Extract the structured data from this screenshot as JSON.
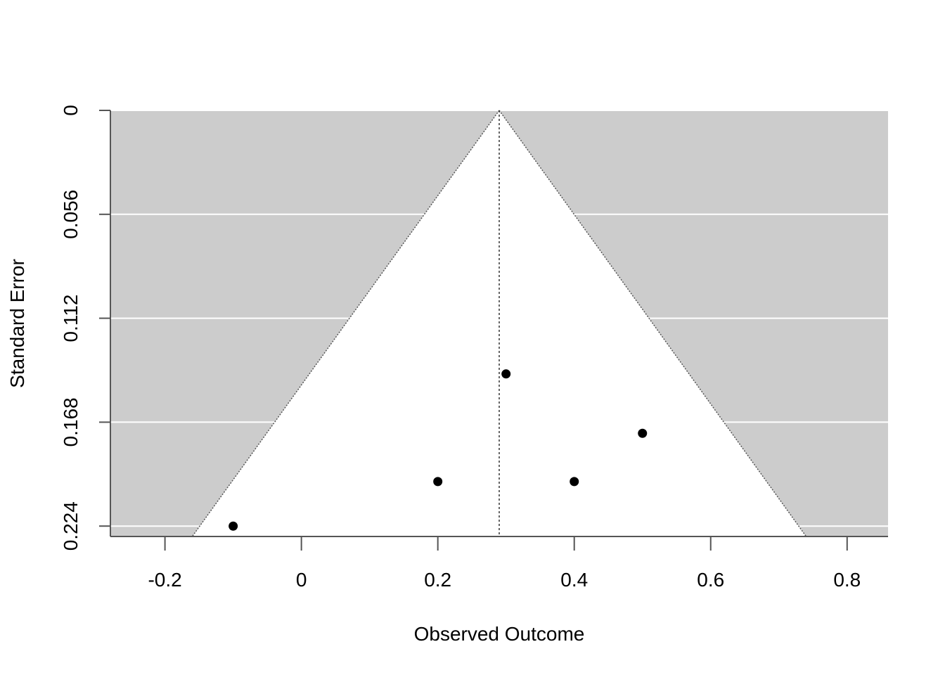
{
  "chart_data": {
    "type": "scatter",
    "title": "",
    "xlabel": "Observed Outcome",
    "ylabel": "Standard Error",
    "xlim": [
      -0.28,
      0.86
    ],
    "ylim": [
      0,
      0.2296
    ],
    "y_reversed": true,
    "x_ticks": [
      -0.2,
      0,
      0.2,
      0.4,
      0.6,
      0.8
    ],
    "x_tick_labels": [
      "-0.2",
      "0",
      "0.2",
      "0.4",
      "0.6",
      "0.8"
    ],
    "y_ticks": [
      0,
      0.056,
      0.112,
      0.168,
      0.224
    ],
    "y_tick_labels": [
      "0",
      "0.056",
      "0.112",
      "0.168",
      "0.224"
    ],
    "reference_estimate": 0.29,
    "funnel_z": 1.96,
    "points": [
      {
        "x": 0.3,
        "y": 0.142
      },
      {
        "x": 0.5,
        "y": 0.174
      },
      {
        "x": 0.2,
        "y": 0.2
      },
      {
        "x": 0.4,
        "y": 0.2
      },
      {
        "x": -0.1,
        "y": 0.224
      }
    ],
    "colors": {
      "background": "#cccccc",
      "funnel": "#ffffff",
      "gridline": "#ffffff",
      "points": "#000000",
      "axis": "#555555"
    }
  }
}
